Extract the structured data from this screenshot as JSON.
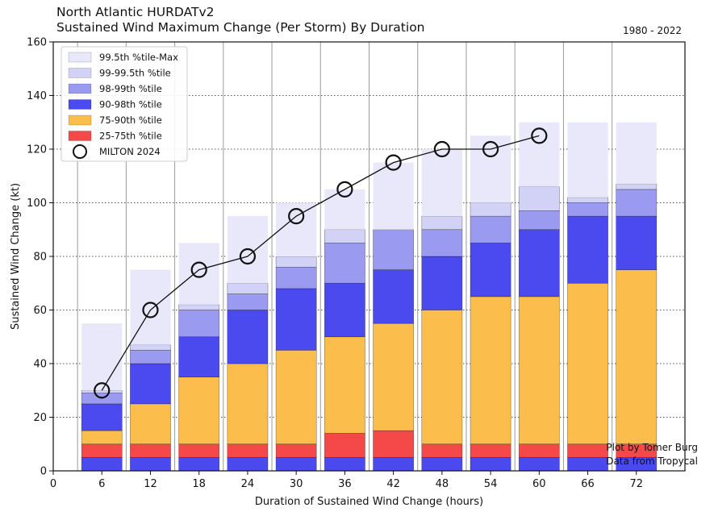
{
  "chart_data": {
    "type": "bar",
    "title": "North Atlantic HURDATv2",
    "subtitle": "Sustained Wind Maximum Change (Per Storm) By Duration",
    "period": "1980 - 2022",
    "xlabel": "Duration of Sustained Wind Change (hours)",
    "ylabel": "Sustained Wind Change (kt)",
    "xlim": [
      0,
      78
    ],
    "ylim": [
      0,
      160
    ],
    "xticks": [
      0,
      6,
      12,
      18,
      24,
      30,
      36,
      42,
      48,
      54,
      60,
      66,
      72
    ],
    "yticks": [
      0,
      20,
      40,
      60,
      80,
      100,
      120,
      140,
      160
    ],
    "grid": "on",
    "legend_position": "top-left",
    "categories": [
      6,
      12,
      18,
      24,
      30,
      36,
      42,
      48,
      54,
      60,
      66,
      72
    ],
    "percentiles": {
      "p25": [
        5,
        5,
        5,
        5,
        5,
        5,
        5,
        5,
        5,
        5,
        5,
        5
      ],
      "p75": [
        10,
        10,
        10,
        10,
        10,
        14,
        15,
        10,
        10,
        10,
        10,
        10
      ],
      "p90": [
        15,
        25,
        35,
        40,
        45,
        50,
        55,
        60,
        65,
        65,
        70,
        75
      ],
      "p98": [
        25,
        40,
        50,
        60,
        68,
        70,
        75,
        80,
        85,
        90,
        95,
        95
      ],
      "p99": [
        29,
        45,
        60,
        66,
        76,
        85,
        90,
        90,
        95,
        97,
        100,
        105
      ],
      "p995": [
        30,
        47,
        62,
        70,
        80,
        90,
        90,
        95,
        100,
        106,
        102,
        107
      ],
      "max": [
        55,
        75,
        85,
        95,
        100,
        105,
        115,
        120,
        125,
        130,
        130,
        130
      ]
    },
    "bands": [
      {
        "name": "25-75th %tile",
        "from": "p25",
        "to": "p75",
        "color": "#f54848"
      },
      {
        "name": "75-90th %tile",
        "from": "p75",
        "to": "p90",
        "color": "#fbbd4b"
      },
      {
        "name": "90-98th %tile",
        "from": "p90",
        "to": "p98",
        "color": "#4a4aee"
      },
      {
        "name": "98-99th %tile",
        "from": "p98",
        "to": "p99",
        "color": "#9a9af0"
      },
      {
        "name": "99-99.5th %tile",
        "from": "p99",
        "to": "p995",
        "color": "#d2d2f7"
      },
      {
        "name": "99.5th %tile-Max",
        "from": "p995",
        "to": "max",
        "color": "#e8e8fa"
      }
    ],
    "extra_bands_low": [
      {
        "name": "",
        "from": 0,
        "to": "p25",
        "color": "#4a4aee"
      },
      {
        "name": "",
        "from": "p75_low",
        "to": "p25",
        "color": "#fbbd4b"
      }
    ],
    "series": [
      {
        "name": "MILTON 2024",
        "x": [
          6,
          12,
          18,
          24,
          30,
          36,
          42,
          48,
          54,
          60
        ],
        "values": [
          30,
          60,
          75,
          80,
          95,
          105,
          115,
          120,
          120,
          125
        ]
      }
    ],
    "legend": [
      "99.5th %tile-Max",
      "99-99.5th %tile",
      "98-99th %tile",
      "90-98th %tile",
      "75-90th %tile",
      "25-75th %tile",
      "MILTON 2024"
    ],
    "colors": {
      "p0_25": "#4a4aee",
      "p25_low": "#fbbd4b"
    }
  },
  "credits": {
    "line1": "Plot by Tomer Burg",
    "line2": "Data from Tropycal"
  }
}
